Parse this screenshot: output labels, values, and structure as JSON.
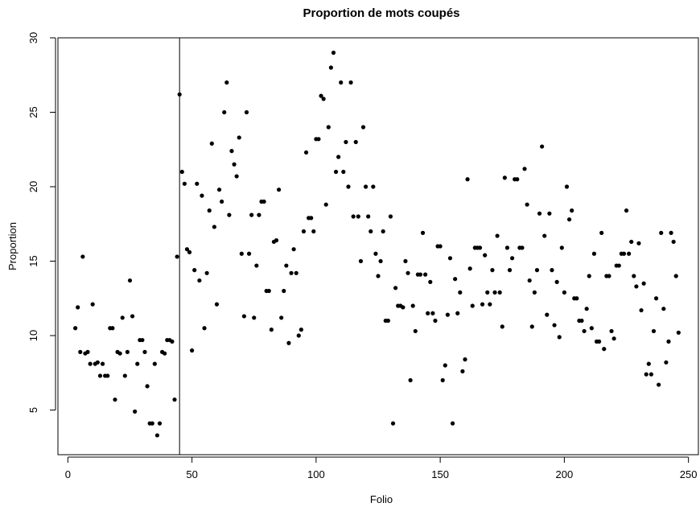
{
  "chart_data": {
    "type": "scatter",
    "title": "Proportion de mots coupés",
    "xlabel": "Folio",
    "ylabel": "Proportion",
    "xlim": [
      -4,
      254
    ],
    "ylim": [
      2,
      30
    ],
    "xticks": [
      0,
      50,
      100,
      150,
      200,
      250
    ],
    "yticks": [
      5,
      10,
      15,
      20,
      25,
      30
    ],
    "vline": 45,
    "grid": false,
    "marker_color": "#000000",
    "x": [
      3,
      4,
      5,
      6,
      7,
      8,
      9,
      10,
      11,
      12,
      13,
      14,
      15,
      16,
      17,
      18,
      19,
      20,
      21,
      22,
      23,
      24,
      25,
      26,
      27,
      28,
      29,
      30,
      31,
      32,
      33,
      34,
      35,
      36,
      37,
      38,
      39,
      40,
      41,
      42,
      43,
      44,
      45,
      46,
      47,
      48,
      49,
      50,
      51,
      52,
      53,
      54,
      55,
      56,
      57,
      58,
      59,
      60,
      61,
      62,
      63,
      64,
      65,
      66,
      67,
      68,
      69,
      70,
      71,
      72,
      73,
      74,
      75,
      76,
      77,
      78,
      79,
      80,
      81,
      82,
      83,
      84,
      85,
      86,
      87,
      88,
      89,
      90,
      91,
      92,
      93,
      94,
      95,
      96,
      97,
      98,
      99,
      100,
      101,
      102,
      103,
      104,
      105,
      106,
      107,
      108,
      109,
      110,
      111,
      112,
      113,
      114,
      115,
      116,
      117,
      118,
      119,
      120,
      121,
      122,
      123,
      124,
      125,
      126,
      127,
      128,
      129,
      130,
      131,
      132,
      133,
      134,
      135,
      136,
      137,
      138,
      139,
      140,
      141,
      142,
      143,
      144,
      145,
      146,
      147,
      148,
      149,
      150,
      151,
      152,
      153,
      154,
      155,
      156,
      157,
      158,
      159,
      160,
      161,
      162,
      163,
      164,
      165,
      166,
      167,
      168,
      169,
      170,
      171,
      172,
      173,
      174,
      175,
      176,
      177,
      178,
      179,
      180,
      181,
      182,
      183,
      184,
      185,
      186,
      187,
      188,
      189,
      190,
      191,
      192,
      193,
      194,
      195,
      196,
      197,
      198,
      199,
      200,
      201,
      202,
      203,
      204,
      205,
      206,
      207,
      208,
      209,
      210,
      211,
      212,
      213,
      214,
      215,
      216,
      217,
      218,
      219,
      220,
      221,
      222,
      223,
      224,
      225,
      226,
      227,
      228,
      229,
      230,
      231,
      232,
      233,
      234,
      235,
      236,
      237,
      238,
      239,
      240,
      241,
      242,
      243,
      244,
      245,
      246
    ],
    "y": [
      10.5,
      11.9,
      8.9,
      15.3,
      8.8,
      8.9,
      8.1,
      12.1,
      8.1,
      8.2,
      7.3,
      8.1,
      7.3,
      7.3,
      10.5,
      10.5,
      5.7,
      8.9,
      8.8,
      11.2,
      7.3,
      8.9,
      13.7,
      11.3,
      4.9,
      8.1,
      9.7,
      9.7,
      8.9,
      6.6,
      4.1,
      4.1,
      8.1,
      3.3,
      4.1,
      8.9,
      8.8,
      9.7,
      9.7,
      9.6,
      5.7,
      15.3,
      26.2,
      21,
      20.2,
      15.8,
      15.6,
      9,
      14.4,
      20.2,
      13.7,
      19.4,
      10.5,
      14.2,
      18.4,
      22.9,
      17.3,
      12.1,
      19.8,
      19,
      25,
      27,
      18.1,
      22.4,
      21.5,
      20.7,
      23.3,
      15.5,
      11.3,
      25,
      15.5,
      18.1,
      11.2,
      14.7,
      18.1,
      19,
      19,
      13,
      13,
      10.4,
      16.3,
      16.4,
      19.8,
      11.2,
      13,
      14.7,
      9.5,
      14.2,
      15.8,
      14.2,
      10,
      10.4,
      17,
      22.3,
      17.9,
      17.9,
      17,
      23.2,
      23.2,
      26.1,
      25.9,
      18.8,
      24,
      28,
      29,
      21,
      22,
      27,
      21,
      23,
      20,
      27,
      18,
      23,
      18,
      15,
      24,
      20,
      18,
      17,
      20,
      15.5,
      14,
      15,
      17,
      11,
      11,
      18,
      4.1,
      13.2,
      12,
      12,
      11.9,
      15,
      14.2,
      7,
      12,
      10.3,
      14.1,
      14.1,
      16.9,
      14.1,
      11.5,
      13.6,
      11.5,
      11,
      16,
      16,
      7,
      8,
      11.4,
      15.2,
      4.1,
      13.8,
      11.5,
      12.9,
      7.6,
      8.4,
      20.5,
      14.5,
      12,
      15.9,
      15.9,
      15.9,
      12.1,
      15.4,
      12.9,
      12.1,
      14.4,
      12.9,
      16.7,
      12.9,
      10.6,
      20.6,
      15.9,
      14.4,
      15.2,
      20.5,
      20.5,
      15.9,
      15.9,
      21.2,
      18.8,
      13.7,
      10.6,
      12.9,
      14.4,
      18.2,
      22.7,
      16.7,
      11.4,
      18.2,
      14.4,
      10.7,
      13.6,
      9.9,
      15.9,
      12.9,
      20,
      17.8,
      18.4,
      12.5,
      12.5,
      11,
      11,
      10.3,
      11.8,
      14,
      10.5,
      15.5,
      9.6,
      9.6,
      16.9,
      9.1,
      14,
      14,
      10.3,
      9.8,
      14.7,
      14.7,
      15.5,
      15.5,
      18.4,
      15.5,
      16.3,
      14,
      13.3,
      16.2,
      11.7,
      13.5,
      7.4,
      8.1,
      7.4,
      10.3,
      12.5,
      6.7,
      16.9,
      11.8,
      8.2,
      9.6,
      16.9,
      16.3,
      14,
      10.2
    ]
  }
}
